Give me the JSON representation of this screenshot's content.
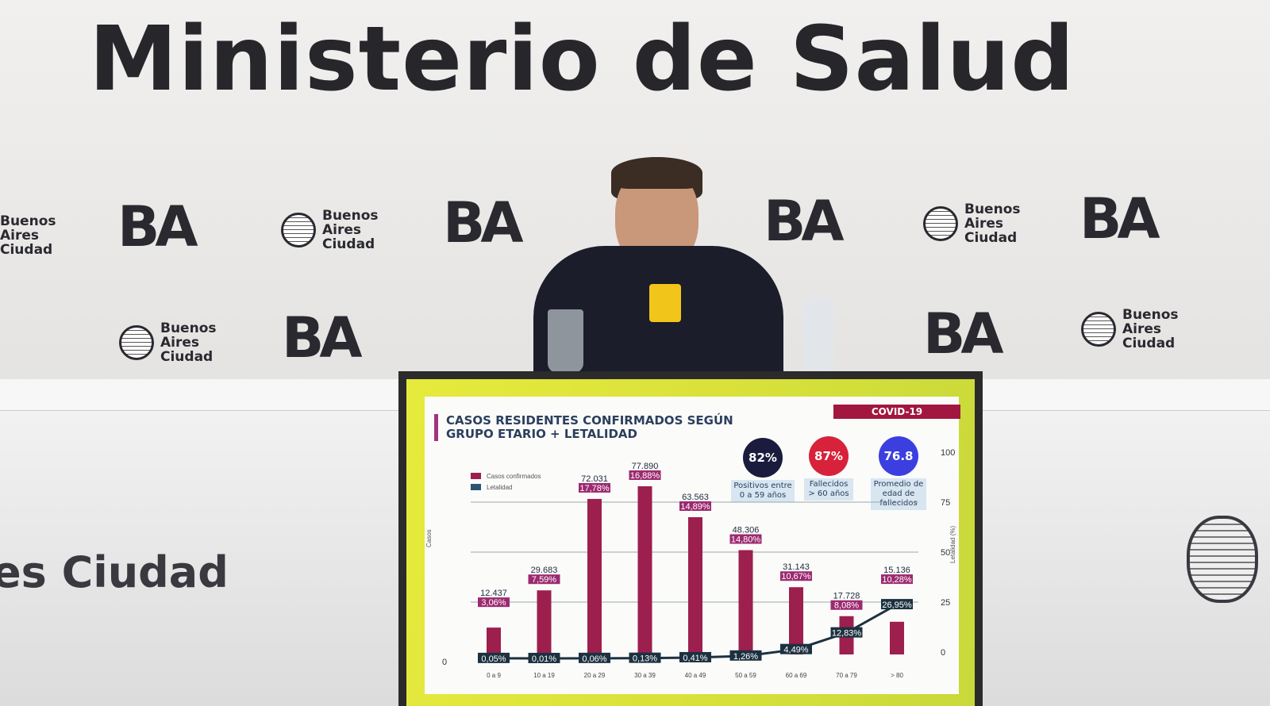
{
  "backdrop": {
    "title": "Ministerio de Salud",
    "logo_ba": "BA",
    "logo_city": [
      "Buenos",
      "Aires",
      "Ciudad"
    ],
    "side_text": "es Ciudad"
  },
  "slide": {
    "title_line1": "CASOS RESIDENTES CONFIRMADOS SEGÚN",
    "title_line2": "GRUPO ETARIO + LETALIDAD",
    "tag": "COVID-19",
    "kpis": [
      {
        "value": "82%",
        "label": "Positivos entre 0 a 59 años",
        "color": "#1b1b3d"
      },
      {
        "value": "87%",
        "label": "Fallecidos > 60 años",
        "color": "#d8213a"
      },
      {
        "value": "76.8",
        "label": "Promedio de edad de fallecidos",
        "color": "#3b3fe0"
      }
    ]
  },
  "chart_data": {
    "type": "bar",
    "categories": [
      "0 a 9",
      "10 a 19",
      "20 a 29",
      "30 a 39",
      "40 a 49",
      "50 a 59",
      "60 a 69",
      "70 a 79",
      "> 80"
    ],
    "series": [
      {
        "name": "Casos confirmados",
        "type": "bar",
        "color": "#9c1f4e",
        "values": [
          12437,
          29683,
          72031,
          77890,
          63563,
          48306,
          31143,
          17728,
          15136
        ],
        "value_labels": [
          "12.437",
          "29.683",
          "72.031",
          "77.890",
          "63.563",
          "48.306",
          "31.143",
          "17.728",
          "15.136"
        ],
        "share_labels": [
          "3,06%",
          "7,59%",
          "17,78%",
          "16,88%",
          "14,89%",
          "14,80%",
          "10,67%",
          "8,08%",
          "10,28%"
        ]
      },
      {
        "name": "Letalidad",
        "type": "line",
        "color": "#1c3140",
        "axis": "right",
        "values": [
          0.05,
          0.01,
          0.06,
          0.13,
          0.41,
          1.26,
          4.49,
          12.83,
          26.95
        ],
        "value_labels": [
          "0,05%",
          "0,01%",
          "0,06%",
          "0,13%",
          "0,41%",
          "1,26%",
          "4,49%",
          "12,83%",
          "26,95%"
        ]
      }
    ],
    "ylabel": "Casos",
    "y2label": "Letalidad (%)",
    "y_ticks": [
      "0"
    ],
    "y2_ticks": [
      "0",
      "25",
      "50",
      "75",
      "100"
    ],
    "y2lim": [
      0,
      100
    ],
    "legend": "top-left",
    "grid": true
  }
}
